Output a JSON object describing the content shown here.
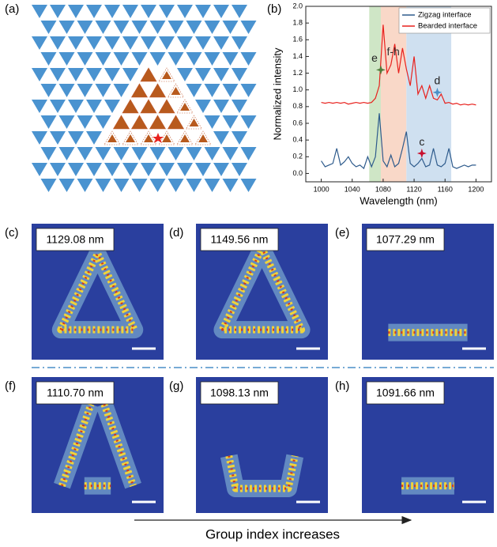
{
  "panels": [
    {
      "label": "(a)"
    },
    {
      "label": "(b)"
    }
  ],
  "chart_data": {
    "type": "line",
    "xlabel": "Wavelength (nm)",
    "ylabel": "Normalized intensity",
    "x": [
      1000,
      1005,
      1010,
      1015,
      1020,
      1025,
      1030,
      1035,
      1040,
      1045,
      1050,
      1055,
      1060,
      1065,
      1070,
      1075,
      1080,
      1085,
      1090,
      1095,
      1100,
      1105,
      1110,
      1115,
      1120,
      1125,
      1130,
      1135,
      1140,
      1145,
      1150,
      1155,
      1160,
      1165,
      1170,
      1175,
      1180,
      1185,
      1190,
      1195,
      1200
    ],
    "series": [
      {
        "name": "Zigzag interface",
        "color": "#2e5b8c",
        "values": [
          0.15,
          0.08,
          0.1,
          0.12,
          0.3,
          0.1,
          0.14,
          0.2,
          0.12,
          0.08,
          0.1,
          0.06,
          0.2,
          0.08,
          0.2,
          0.72,
          0.15,
          0.08,
          0.22,
          0.08,
          0.12,
          0.3,
          0.5,
          0.12,
          0.08,
          0.12,
          0.18,
          0.08,
          0.1,
          0.3,
          0.1,
          0.08,
          0.12,
          0.3,
          0.08,
          0.06,
          0.08,
          0.1,
          0.08,
          0.1,
          0.1
        ]
      },
      {
        "name": "Bearded interface",
        "color": "#e8211d",
        "values": [
          0.85,
          0.84,
          0.85,
          0.84,
          0.85,
          0.84,
          0.85,
          0.83,
          0.84,
          0.85,
          0.84,
          0.85,
          0.84,
          0.85,
          0.9,
          1.05,
          1.78,
          1.2,
          1.3,
          1.55,
          1.2,
          1.5,
          1.25,
          1.05,
          1.4,
          0.95,
          1.05,
          0.9,
          1.05,
          0.9,
          0.88,
          0.95,
          0.84,
          0.85,
          0.83,
          0.84,
          0.82,
          0.83,
          0.82,
          0.83,
          0.82
        ]
      }
    ],
    "bands": [
      {
        "x0": 1062,
        "x1": 1077,
        "color": "#cfe6c6"
      },
      {
        "x0": 1077,
        "x1": 1110,
        "color": "#f9d8c8"
      },
      {
        "x0": 1110,
        "x1": 1168,
        "color": "#cfe0f0"
      }
    ],
    "annotations": [
      {
        "text": "e",
        "x": 1077,
        "y": 1.24,
        "color": "#4f7d3c"
      },
      {
        "text": "f-h",
        "x": 1093,
        "y": 1.45,
        "color": "#333333"
      },
      {
        "text": "d",
        "x": 1150,
        "y": 0.97,
        "color": "#4a90c8"
      },
      {
        "text": "c",
        "x": 1130,
        "y": 0.24,
        "color": "#c8102e"
      }
    ],
    "xlim": [
      980,
      1220
    ],
    "xticks": [
      1000,
      1040,
      1080,
      1120,
      1160,
      1200
    ],
    "ylim": [
      -0.1,
      2.0
    ],
    "yticks": [
      {
        "value": 0,
        "label": "0.0"
      },
      0.2,
      0.4,
      0.6,
      0.8,
      {
        "value": 1,
        "label": "1.0"
      },
      1.2,
      1.4,
      1.6,
      1.8,
      {
        "value": 2,
        "label": "2.0"
      }
    ],
    "legend": "upper right"
  },
  "modes": [
    {
      "label": "(c)",
      "wavelength": "1129.08 nm"
    },
    {
      "label": "(d)",
      "wavelength": "1149.56 nm"
    },
    {
      "label": "(e)",
      "wavelength": "1077.29 nm"
    },
    {
      "label": "(f)",
      "wavelength": "1110.70 nm"
    },
    {
      "label": "(g)",
      "wavelength": "1098.13 nm"
    },
    {
      "label": "(h)",
      "wavelength": "1091.66 nm"
    }
  ],
  "caption": "Group index increases"
}
